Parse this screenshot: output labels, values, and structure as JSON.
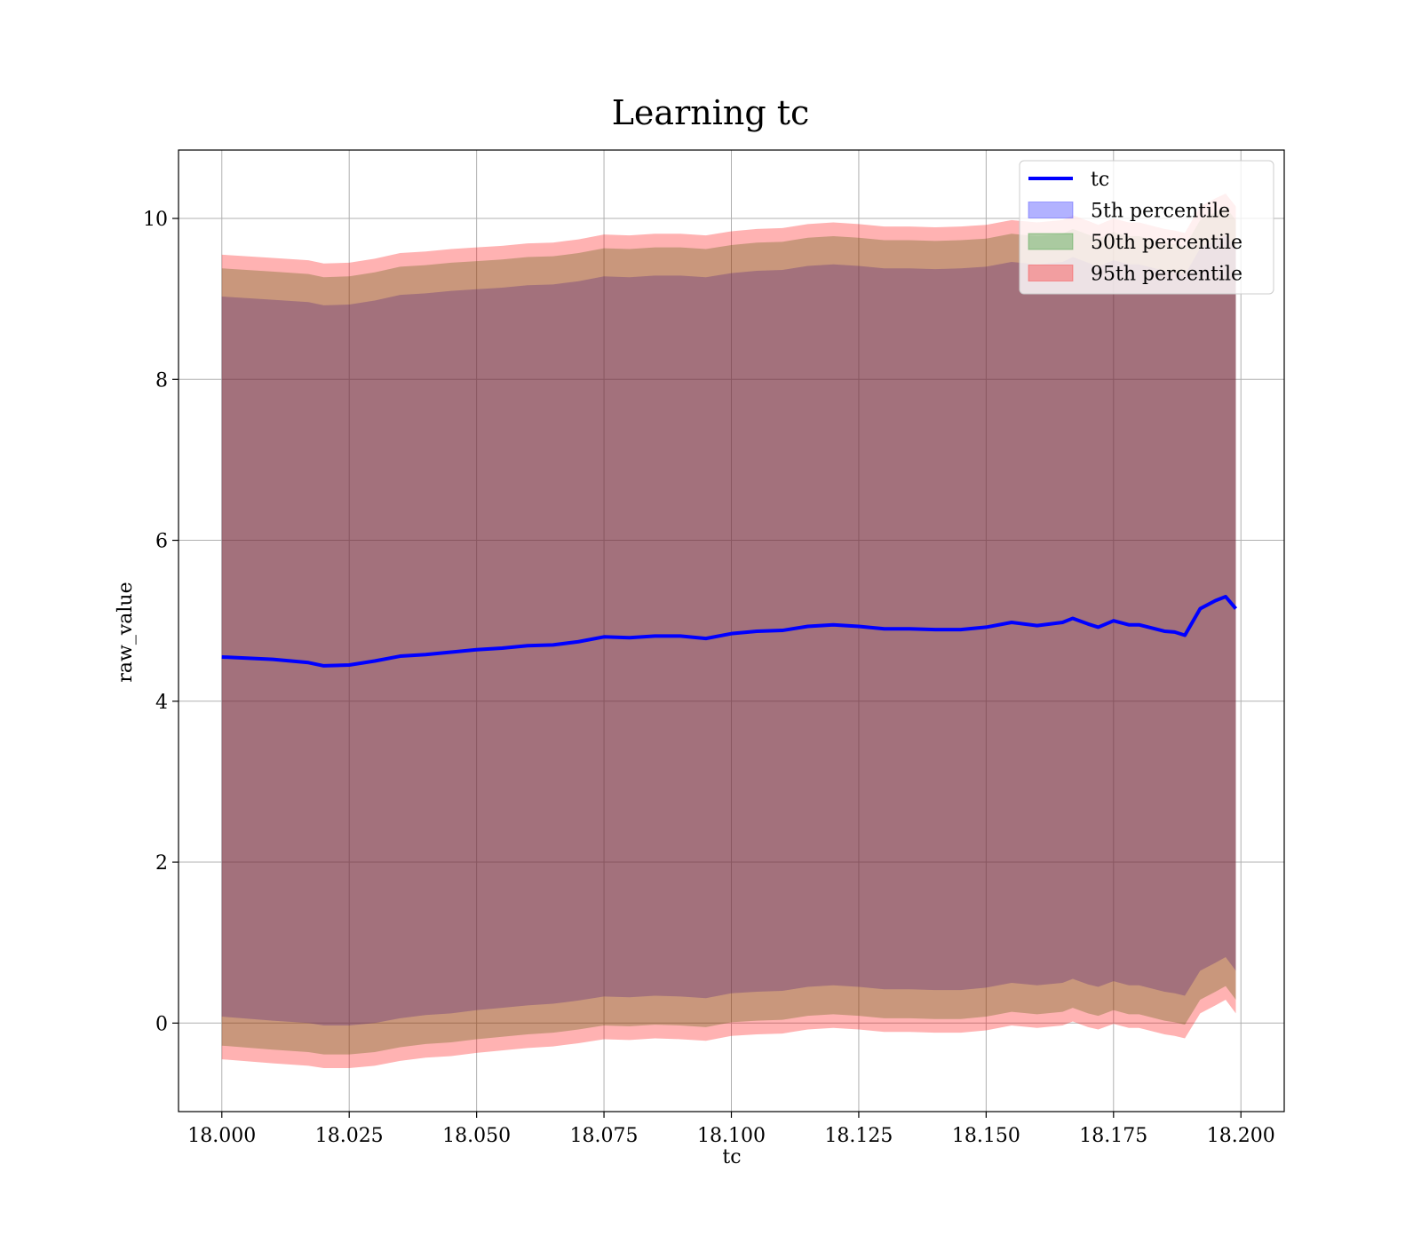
{
  "chart_data": {
    "type": "area",
    "title": "Learning tc",
    "xlabel": "tc",
    "ylabel": "raw_value",
    "xlim": [
      17.9915,
      18.2085
    ],
    "ylim": [
      -1.1,
      10.85
    ],
    "xticks": [
      18.0,
      18.025,
      18.05,
      18.075,
      18.1,
      18.125,
      18.15,
      18.175,
      18.2
    ],
    "xtick_labels": [
      "18.000",
      "18.025",
      "18.050",
      "18.075",
      "18.100",
      "18.125",
      "18.150",
      "18.175",
      "18.200"
    ],
    "yticks": [
      0,
      2,
      4,
      6,
      8,
      10
    ],
    "ytick_labels": [
      "0",
      "2",
      "4",
      "6",
      "8",
      "10"
    ],
    "grid": true,
    "legend_position": "top-right",
    "x": [
      18.0,
      18.01,
      18.017,
      18.02,
      18.025,
      18.03,
      18.035,
      18.04,
      18.045,
      18.05,
      18.055,
      18.06,
      18.065,
      18.07,
      18.075,
      18.08,
      18.085,
      18.09,
      18.095,
      18.1,
      18.105,
      18.11,
      18.115,
      18.12,
      18.125,
      18.13,
      18.135,
      18.14,
      18.145,
      18.15,
      18.155,
      18.16,
      18.165,
      18.167,
      18.17,
      18.172,
      18.175,
      18.178,
      18.18,
      18.185,
      18.187,
      18.189,
      18.192,
      18.195,
      18.197,
      18.199
    ],
    "series": [
      {
        "name": "tc",
        "kind": "line",
        "color": "#0000ff",
        "values": [
          4.55,
          4.52,
          4.48,
          4.44,
          4.45,
          4.5,
          4.56,
          4.58,
          4.61,
          4.64,
          4.66,
          4.69,
          4.7,
          4.74,
          4.8,
          4.79,
          4.81,
          4.81,
          4.78,
          4.84,
          4.87,
          4.88,
          4.93,
          4.95,
          4.93,
          4.9,
          4.9,
          4.89,
          4.89,
          4.92,
          4.98,
          4.94,
          4.98,
          5.03,
          4.96,
          4.92,
          5.0,
          4.95,
          4.95,
          4.87,
          4.86,
          4.82,
          5.15,
          5.25,
          5.3,
          5.15
        ]
      },
      {
        "name": "5th percentile",
        "kind": "band",
        "color": "#0000ff",
        "lower": [
          0.08,
          0.03,
          0.0,
          -0.03,
          -0.03,
          0.0,
          0.06,
          0.1,
          0.12,
          0.16,
          0.19,
          0.22,
          0.24,
          0.28,
          0.33,
          0.32,
          0.34,
          0.33,
          0.31,
          0.37,
          0.39,
          0.4,
          0.45,
          0.47,
          0.45,
          0.42,
          0.42,
          0.41,
          0.41,
          0.44,
          0.5,
          0.47,
          0.5,
          0.55,
          0.48,
          0.45,
          0.52,
          0.47,
          0.47,
          0.39,
          0.37,
          0.34,
          0.65,
          0.75,
          0.82,
          0.65
        ],
        "upper": [
          9.03,
          8.99,
          8.96,
          8.92,
          8.93,
          8.98,
          9.05,
          9.07,
          9.1,
          9.12,
          9.14,
          9.17,
          9.18,
          9.22,
          9.28,
          9.27,
          9.29,
          9.29,
          9.27,
          9.32,
          9.35,
          9.36,
          9.41,
          9.43,
          9.41,
          9.38,
          9.38,
          9.37,
          9.38,
          9.4,
          9.46,
          9.43,
          9.46,
          9.52,
          9.45,
          9.4,
          9.48,
          9.43,
          9.43,
          9.35,
          9.33,
          9.3,
          9.63,
          9.73,
          9.79,
          9.63
        ]
      },
      {
        "name": "50th percentile",
        "kind": "band",
        "color": "#008000",
        "lower": [
          -0.28,
          -0.33,
          -0.36,
          -0.39,
          -0.39,
          -0.36,
          -0.3,
          -0.26,
          -0.24,
          -0.2,
          -0.17,
          -0.14,
          -0.12,
          -0.08,
          -0.03,
          -0.04,
          -0.02,
          -0.03,
          -0.05,
          0.01,
          0.03,
          0.04,
          0.09,
          0.11,
          0.09,
          0.06,
          0.06,
          0.05,
          0.05,
          0.08,
          0.14,
          0.11,
          0.14,
          0.19,
          0.12,
          0.09,
          0.16,
          0.11,
          0.11,
          0.03,
          0.01,
          -0.02,
          0.29,
          0.39,
          0.46,
          0.29
        ],
        "upper": [
          9.38,
          9.34,
          9.31,
          9.27,
          9.28,
          9.33,
          9.4,
          9.42,
          9.45,
          9.47,
          9.49,
          9.52,
          9.53,
          9.57,
          9.63,
          9.62,
          9.64,
          9.64,
          9.62,
          9.67,
          9.7,
          9.71,
          9.76,
          9.78,
          9.76,
          9.73,
          9.73,
          9.72,
          9.73,
          9.75,
          9.81,
          9.78,
          9.81,
          9.87,
          9.8,
          9.75,
          9.83,
          9.78,
          9.78,
          9.7,
          9.68,
          9.65,
          9.98,
          10.08,
          10.14,
          9.98
        ]
      },
      {
        "name": "95th percentile",
        "kind": "band",
        "color": "#ff0000",
        "lower": [
          -0.45,
          -0.5,
          -0.53,
          -0.56,
          -0.56,
          -0.53,
          -0.47,
          -0.43,
          -0.41,
          -0.37,
          -0.34,
          -0.31,
          -0.29,
          -0.25,
          -0.2,
          -0.21,
          -0.19,
          -0.2,
          -0.22,
          -0.16,
          -0.14,
          -0.13,
          -0.08,
          -0.06,
          -0.08,
          -0.11,
          -0.11,
          -0.12,
          -0.12,
          -0.09,
          -0.03,
          -0.06,
          -0.03,
          0.02,
          -0.05,
          -0.08,
          -0.01,
          -0.06,
          -0.06,
          -0.14,
          -0.16,
          -0.19,
          0.12,
          0.22,
          0.29,
          0.12
        ],
        "upper": [
          9.55,
          9.51,
          9.48,
          9.44,
          9.45,
          9.5,
          9.57,
          9.59,
          9.62,
          9.64,
          9.66,
          9.69,
          9.7,
          9.74,
          9.8,
          9.79,
          9.81,
          9.81,
          9.79,
          9.84,
          9.87,
          9.88,
          9.93,
          9.95,
          9.93,
          9.9,
          9.9,
          9.89,
          9.9,
          9.92,
          9.98,
          9.95,
          9.98,
          10.04,
          9.97,
          9.92,
          10.0,
          9.95,
          9.95,
          9.87,
          9.85,
          9.82,
          10.15,
          10.25,
          10.31,
          10.15
        ]
      }
    ]
  }
}
